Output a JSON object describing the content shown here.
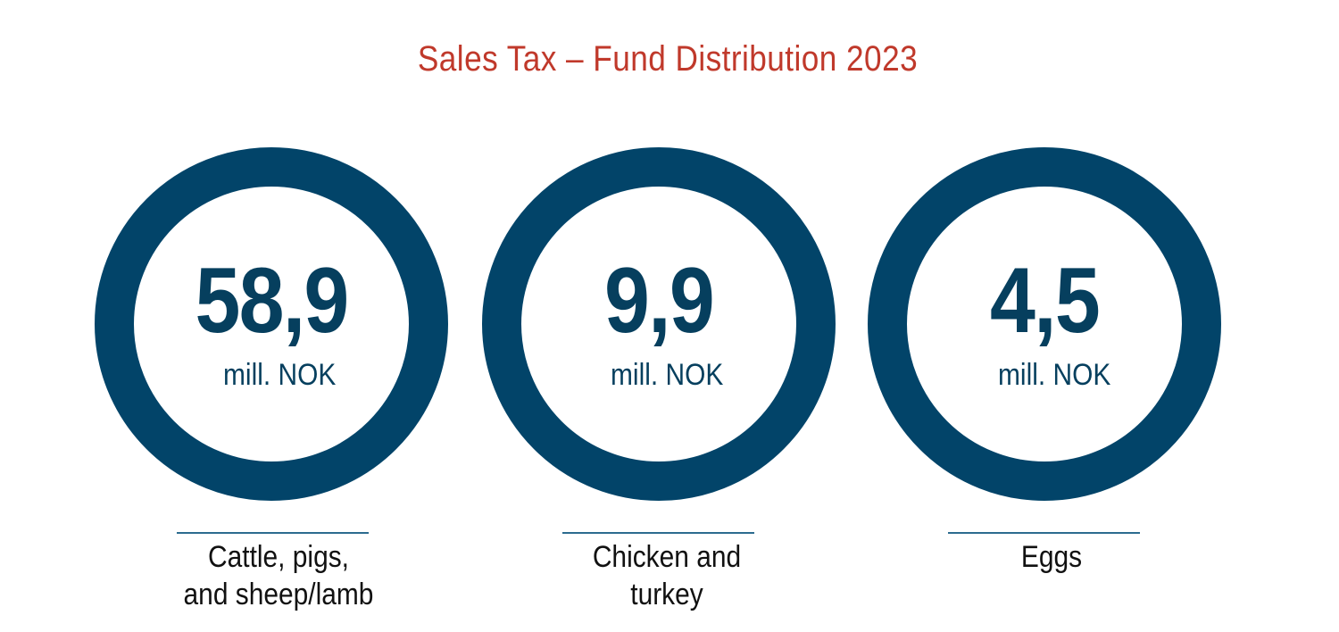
{
  "title": "Sales Tax – Fund Distribution 2023",
  "colors": {
    "title": "#c0392b",
    "ring": "#024469",
    "value_text": "#063f5e",
    "rule": "#2c6b8f",
    "caption_text": "#111111"
  },
  "cards": [
    {
      "value": "58,9",
      "unit": "mill. NOK",
      "caption_line1": "Cattle, pigs,",
      "caption_line2": "and sheep/lamb"
    },
    {
      "value": "9,9",
      "unit": "mill. NOK",
      "caption_line1": "Chicken and",
      "caption_line2": "turkey"
    },
    {
      "value": "4,5",
      "unit": "mill. NOK",
      "caption_line1": "Eggs",
      "caption_line2": ""
    }
  ]
}
